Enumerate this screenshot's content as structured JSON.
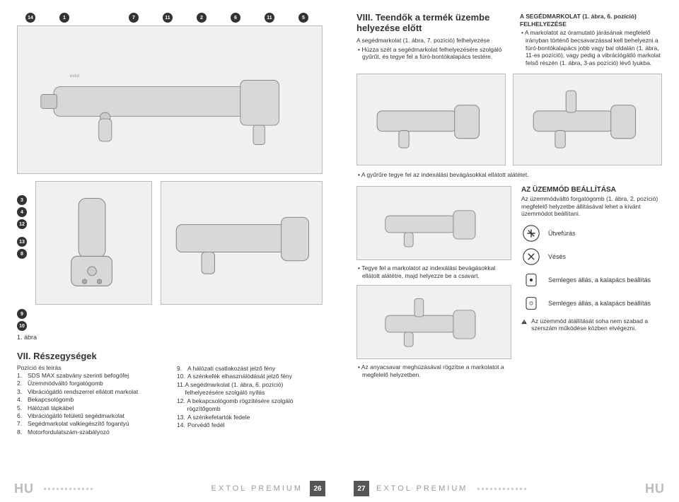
{
  "left": {
    "callouts_top": [
      "14",
      "1",
      "7",
      "11",
      "2",
      "6",
      "11",
      "5"
    ],
    "callouts_mid": [
      "3",
      "4",
      "12",
      "13",
      "8"
    ],
    "callouts_low": [
      "9",
      "10"
    ],
    "figure_label": "1. ábra",
    "section7": {
      "title": "VII. Részegységek",
      "subtitle": "Pozíció és leírás",
      "items_left": [
        {
          "n": "1.",
          "t": "SDS MAX szabvány szerinti befogófej"
        },
        {
          "n": "2.",
          "t": "Üzemmódváltó forgatógomb"
        },
        {
          "n": "3.",
          "t": "Vibrációgátló rendszerrel ellátott markolat"
        },
        {
          "n": "4.",
          "t": "Bekapcsológomb"
        },
        {
          "n": "5.",
          "t": "Hálózati tápkábel"
        },
        {
          "n": "6.",
          "t": "Vibrációgátló felületű segédmarkolat"
        },
        {
          "n": "7.",
          "t": "Segédmarkolat valkiegészítő fogantyú"
        },
        {
          "n": "8.",
          "t": "Motorfordulatszám-szabályozó"
        }
      ],
      "items_right": [
        {
          "n": "9.",
          "t": "A hálózati csatlakozást jelző fény"
        },
        {
          "n": "10.",
          "t": "A szénkefék elhasználódását jelző fény"
        },
        {
          "n": "11.",
          "t": "A segédmarkolat (1. ábra, 6. pozíció) felhelyezésére szolgáló nyílás"
        },
        {
          "n": "12.",
          "t": "A bekapcsológomb rögzítésére szolgáló rögzítőgomb"
        },
        {
          "n": "13.",
          "t": "A szénkefetartók fedele"
        },
        {
          "n": "14.",
          "t": "Porvédő fedél"
        }
      ]
    },
    "footer": {
      "lang": "HU",
      "brand": "EXTOL PREMIUM",
      "page": "26"
    }
  },
  "right": {
    "section8": {
      "title": "VIII. Teendők a termék üzembe helyezése előtt",
      "p1": "A segédmarkolat (1. ábra, 7. pozíció) felhelyezése",
      "b1": "Húzza szét a segédmarkolat felhelyezésére szolgáló gyűrűt, és tegye fel a fúró-bontókalapács testére.",
      "rcol_title": "A SEGÉDMARKOLAT (1. ábra, 6. pozíció) FELHELYEZÉSE",
      "rcol_b1": "A markolatot az óramutató járásának megfelelő irányban történő becsavarzással kell behelyezni a fúró-bontókalapács jobb vagy bal oldalán (1. ábra, 11-es pozíció), vagy pedig a vibrációgátló markolat felső részén (1. ábra, 3-as pozíció) lévő lyukba."
    },
    "mid_b1": "A gyűrűre tegye fel az indexálási bevágásokkal ellátott alátétet.",
    "mid_b2": "Tegye fel a markolatot az indexálási bevágásokkal ellátott alátétre, majd helyezze be a csavart.",
    "mid_b3": "Az anyacsavar meghúzásával rögzítse a markolatot a megfelelő helyzetben.",
    "mode_title": "AZ ÜZEMMÓD BEÁLLÍTÁSA",
    "mode_p": "Az üzemmódváltó forgatógomb (1. ábra, 2. pozíció) megfelelő helyzetbe állításával lehet a kívánt üzemmódot beállítani.",
    "modes": [
      {
        "label": "Ütvefúrás"
      },
      {
        "label": "Vésés"
      },
      {
        "label": "Semleges állás, a kalapács beállítás"
      },
      {
        "label": "Semleges állás, a kalapács beállítás"
      }
    ],
    "warning": "Az üzemmód átállítását soha nem szabad a szerszám működése közben elvégezni.",
    "footer": {
      "lang": "HU",
      "brand": "EXTOL PREMIUM",
      "page": "27"
    }
  },
  "colors": {
    "callout_bg": "#333333",
    "illus_bg": "#f0f0f0",
    "illus_border": "#bbbbbb",
    "tool_fill": "#d8d8d8",
    "tool_stroke": "#888888",
    "footer_lang": "#bbbbbb",
    "footer_brand": "#999999",
    "pagebox_bg": "#555555"
  }
}
